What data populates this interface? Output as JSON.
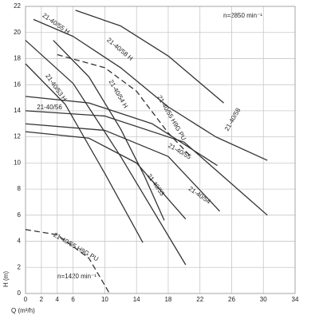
{
  "chart_data": {
    "type": "line",
    "xlabel": "Q (m³/h)",
    "ylabel": "H (m)",
    "annotations": [
      "n=2850 min⁻¹",
      "n=1420 min⁻¹"
    ],
    "xlim": [
      0,
      34
    ],
    "ylim": [
      0,
      22
    ],
    "xticks": [
      0,
      2,
      4,
      6,
      10,
      14,
      18,
      22,
      26,
      30,
      34
    ],
    "yticks": [
      0,
      2,
      4,
      6,
      8,
      10,
      12,
      14,
      16,
      18,
      20,
      22
    ],
    "grid": true,
    "series": [
      {
        "name": "21-40/58",
        "color": "#333333",
        "dashed": false,
        "x": [
          6.3,
          12,
          18,
          25
        ],
        "values": [
          21.7,
          20.5,
          18.2,
          14.6
        ]
      },
      {
        "name": "21-40/58 H",
        "color": "#333333",
        "dashed": false,
        "x": [
          1,
          6,
          12,
          18,
          24,
          30.5
        ],
        "values": [
          21,
          19.7,
          17.3,
          14.3,
          12,
          10.2
        ]
      },
      {
        "name": "21-40/55 H",
        "color": "#333333",
        "dashed": false,
        "x": [
          3.5,
          8,
          12,
          15,
          17.5
        ],
        "values": [
          19.4,
          16.6,
          12.6,
          9,
          5.6
        ]
      },
      {
        "name": "21-40/55 H9G PU",
        "color": "#333333",
        "dashed": true,
        "x": [
          4,
          10,
          14,
          18,
          21
        ],
        "values": [
          18.3,
          17.3,
          15.5,
          12.3,
          10.4
        ]
      },
      {
        "name": "21-40/53 H",
        "color": "#333333",
        "dashed": false,
        "x": [
          0,
          5,
          10,
          14.8
        ],
        "values": [
          17.6,
          14.5,
          9.2,
          3.9
        ]
      },
      {
        "name": "21-40/54 H",
        "color": "#333333",
        "dashed": false,
        "x": [
          0,
          6,
          12,
          20.2
        ],
        "values": [
          19.4,
          16.1,
          10.5,
          2.2
        ]
      },
      {
        "name": "21-40/56",
        "color": "#333333",
        "dashed": false,
        "x": [
          0,
          8,
          16,
          24.2
        ],
        "values": [
          15.1,
          14.6,
          13,
          9.8
        ]
      },
      {
        "name": "21-40/55",
        "color": "#333333",
        "dashed": false,
        "x": [
          0,
          10,
          20,
          30.5
        ],
        "values": [
          14,
          13.6,
          11.6,
          6
        ]
      },
      {
        "name": "21-40/54",
        "color": "#333333",
        "dashed": false,
        "x": [
          0,
          10,
          18,
          24.5
        ],
        "values": [
          13,
          12.5,
          10.5,
          6.3
        ]
      },
      {
        "name": "21-40/53",
        "color": "#333333",
        "dashed": false,
        "x": [
          0,
          8,
          14,
          20.2
        ],
        "values": [
          12.4,
          11.9,
          10,
          5.7
        ]
      },
      {
        "name": "21-40/55 H9G PU",
        "color": "#333333",
        "dashed": true,
        "x": [
          0,
          4,
          8,
          10.6
        ],
        "values": [
          4.9,
          4.5,
          2.7,
          0
        ]
      }
    ]
  }
}
